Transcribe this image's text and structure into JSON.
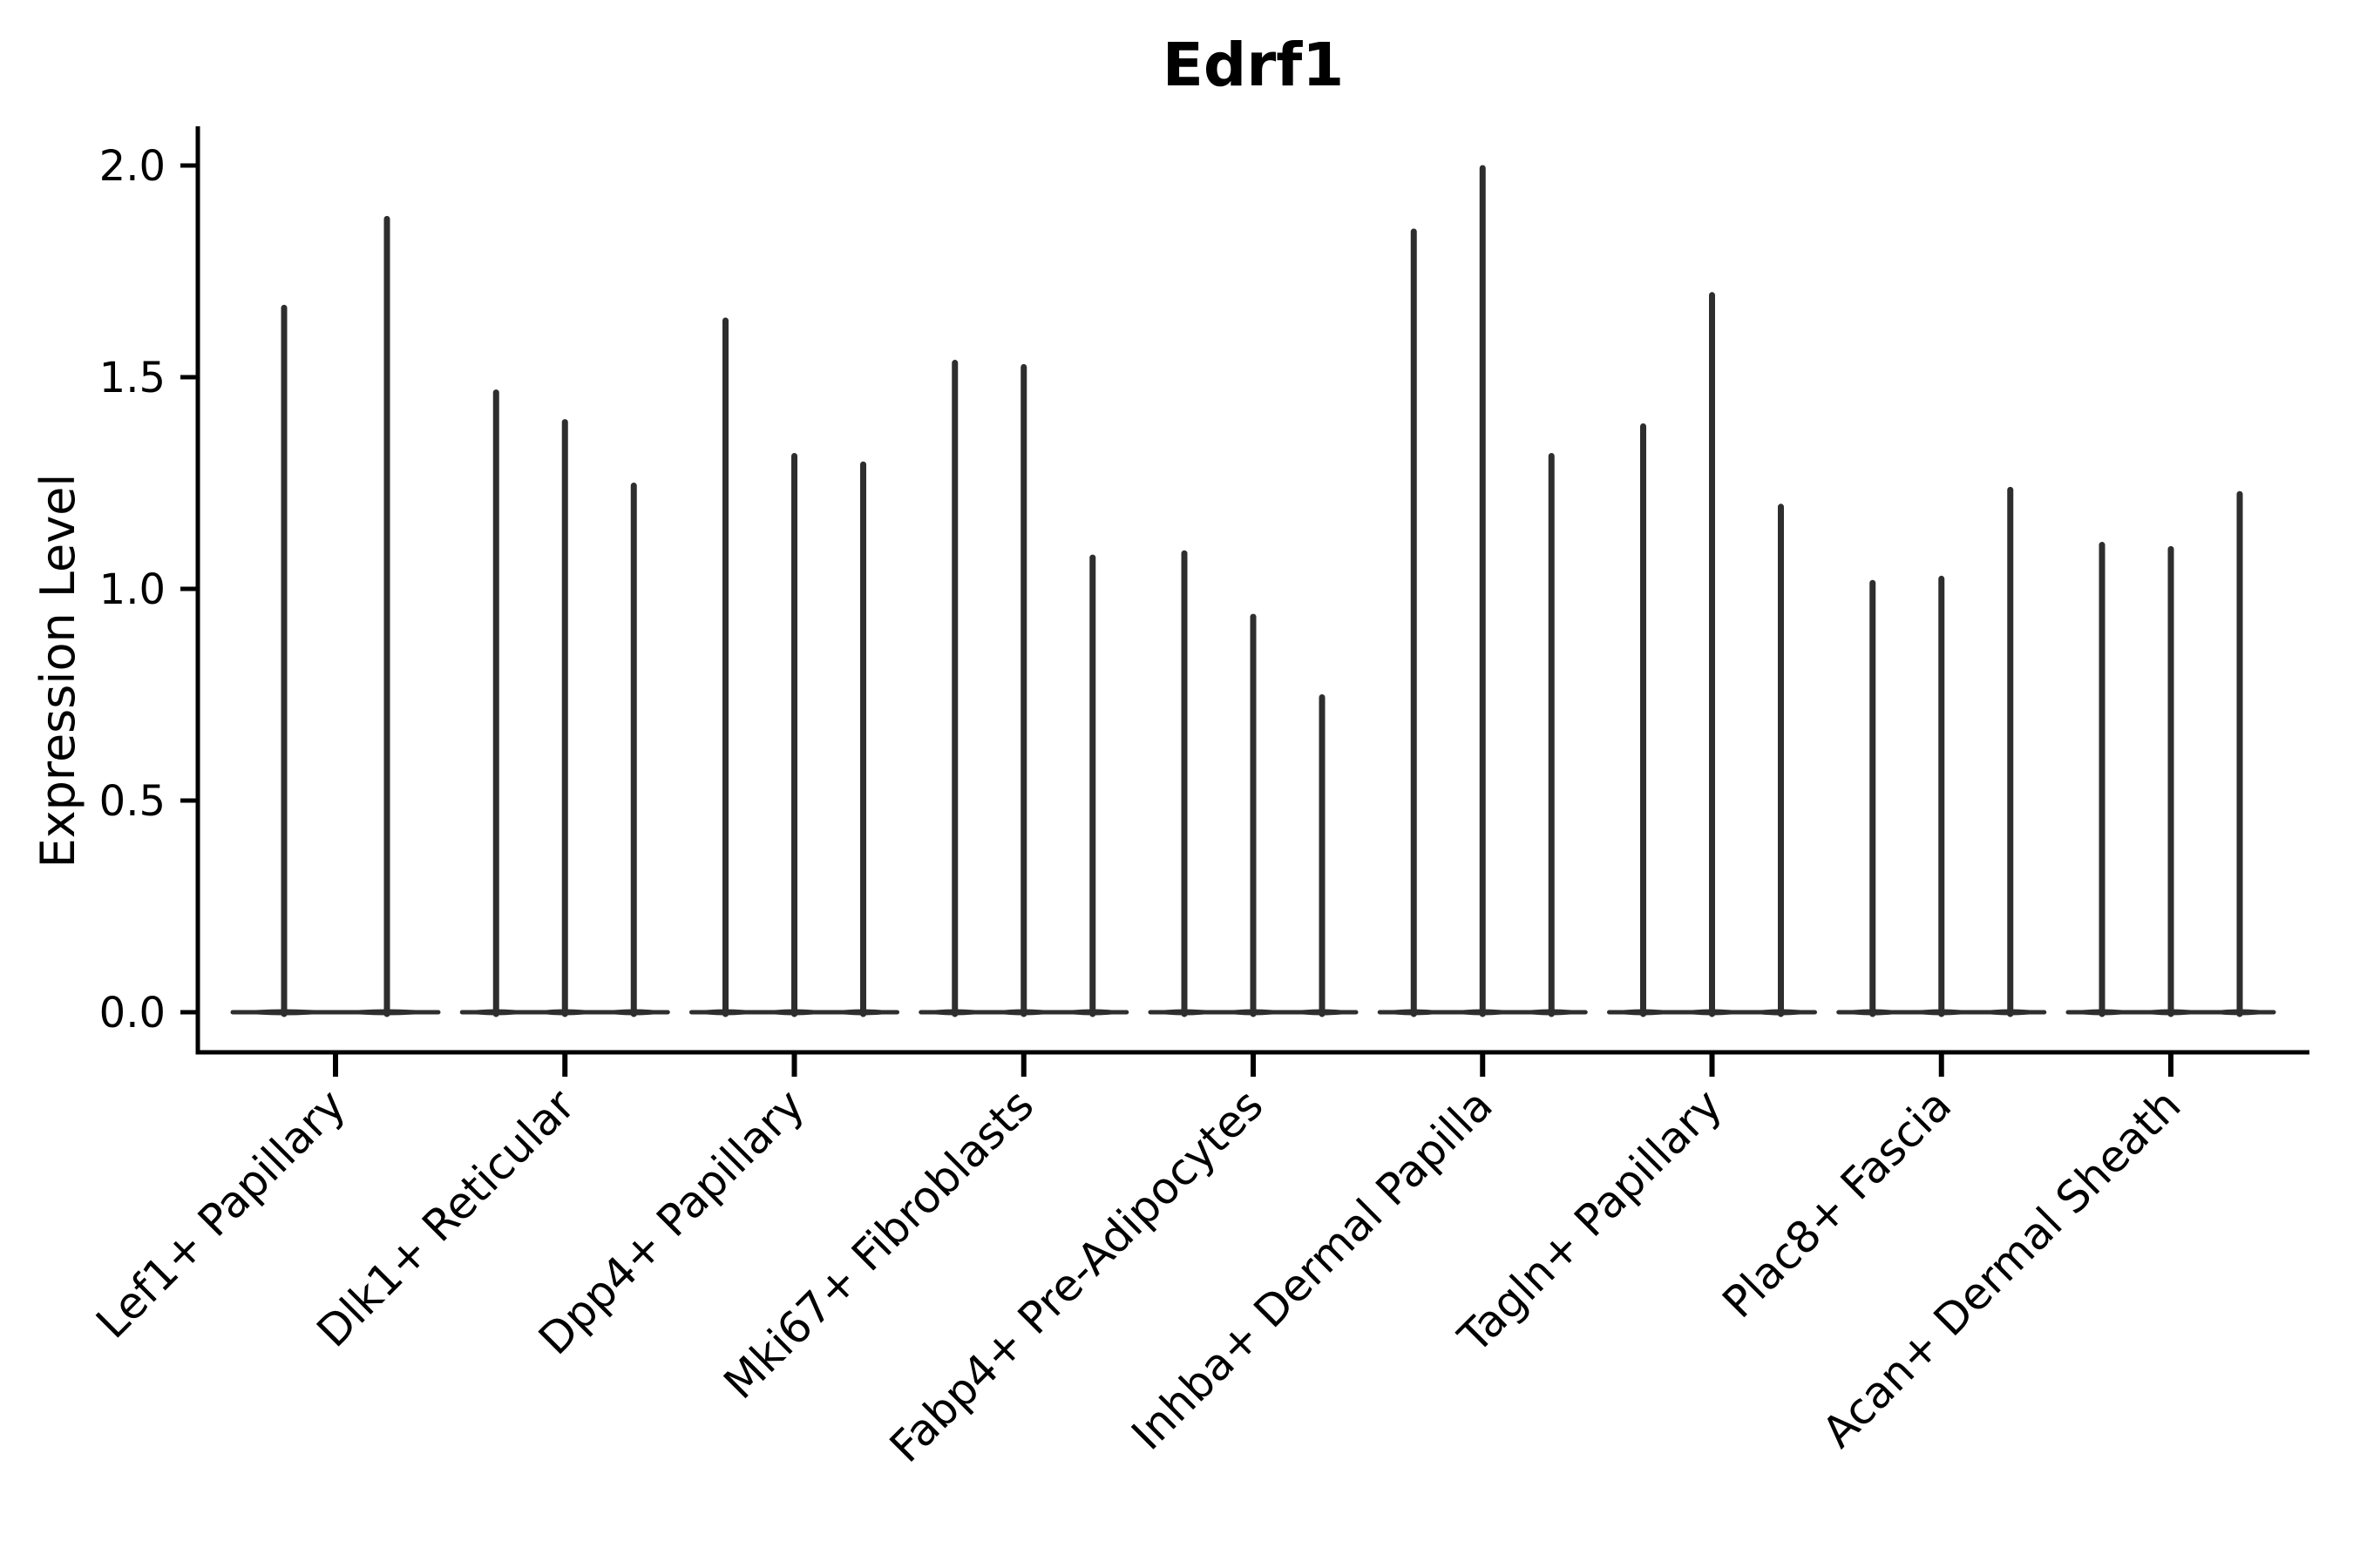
{
  "figure": {
    "title": "Edrf1",
    "background": "#ffffff"
  },
  "chart_data": {
    "type": "violin",
    "title": "Edrf1",
    "xlabel": "",
    "ylabel": "Expression Level",
    "ylim": [
      0.0,
      2.1
    ],
    "yticks": [
      0.0,
      0.5,
      1.0,
      1.5,
      2.0
    ],
    "ytick_labels": [
      "0.0",
      "0.5",
      "1.0",
      "1.5",
      "2.0"
    ],
    "grid": false,
    "legend_position": "none",
    "categories": [
      "Lef1+ Papillary",
      "Dlk1+ Reticular",
      "Dpp4+ Papillary",
      "Mki67+ Fibroblasts",
      "Fabp4+ Pre-Adipocytes",
      "Inhba+ Dermal Papilla",
      "Tagln+ Papillary",
      "Plac8+ Fascia",
      "Acan+ Dermal Sheath"
    ],
    "series": [
      {
        "category": "Lef1+ Papillary",
        "violin_peaks": [
          1.67,
          1.88
        ],
        "baseline": 0.0
      },
      {
        "category": "Dlk1+ Reticular",
        "violin_peaks": [
          1.47,
          1.4,
          1.25
        ],
        "baseline": 0.0
      },
      {
        "category": "Dpp4+ Papillary",
        "violin_peaks": [
          1.64,
          1.32,
          1.3
        ],
        "baseline": 0.0
      },
      {
        "category": "Mki67+ Fibroblasts",
        "violin_peaks": [
          1.54,
          1.53,
          1.08
        ],
        "baseline": 0.0
      },
      {
        "category": "Fabp4+ Pre-Adipocytes",
        "violin_peaks": [
          1.09,
          0.94,
          0.75
        ],
        "baseline": 0.0
      },
      {
        "category": "Inhba+ Dermal Papilla",
        "violin_peaks": [
          1.85,
          2.0,
          1.32
        ],
        "baseline": 0.0
      },
      {
        "category": "Tagln+ Papillary",
        "violin_peaks": [
          1.39,
          1.7,
          1.2
        ],
        "baseline": 0.0
      },
      {
        "category": "Plac8+ Fascia",
        "violin_peaks": [
          1.02,
          1.03,
          1.24
        ],
        "baseline": 0.0
      },
      {
        "category": "Acan+ Dermal Sheath",
        "violin_peaks": [
          1.11,
          1.1,
          1.23
        ],
        "baseline": 0.0
      }
    ],
    "description": "Violin plot of Edrf1 expression per fibroblast cell-type cluster; each category shows 2-3 extremely narrow violins collapsed into a flat body at expression 0 with needle-like spikes rising to the maximum expression values.",
    "colors": {
      "violin": "#2e2e2e",
      "axis": "#000000",
      "text": "#000000",
      "background": "#ffffff"
    }
  }
}
